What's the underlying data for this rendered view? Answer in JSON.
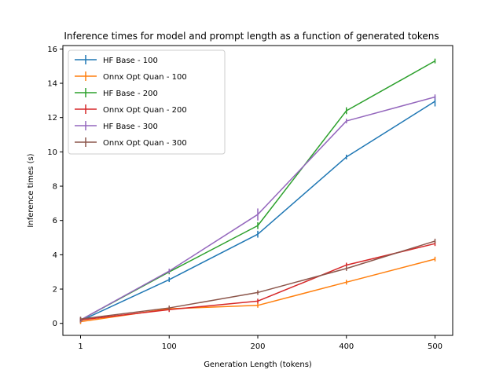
{
  "chart_data": {
    "type": "line",
    "title": "Inference times for model and prompt length as a function of generated tokens",
    "xlabel": "Generation Length (tokens)",
    "ylabel": "Inference times (s)",
    "categories": [
      "1",
      "100",
      "200",
      "400",
      "500"
    ],
    "ylim": [
      -0.7,
      16.2
    ],
    "yticks": [
      0,
      2,
      4,
      6,
      8,
      10,
      12,
      14,
      16
    ],
    "grid": false,
    "legend_position": "upper-left",
    "series": [
      {
        "name": "HF Base - 100",
        "color": "#1f77b4",
        "values": [
          0.15,
          2.55,
          5.2,
          9.7,
          12.95
        ],
        "errors": [
          0.05,
          0.05,
          0.2,
          0.05,
          0.3
        ]
      },
      {
        "name": "Onnx Opt Quan - 100",
        "color": "#ff7f0e",
        "values": [
          0.1,
          0.85,
          1.05,
          2.4,
          3.75
        ],
        "errors": [
          0.03,
          0.03,
          0.05,
          0.05,
          0.05
        ]
      },
      {
        "name": "HF Base - 200",
        "color": "#2ca02c",
        "values": [
          0.2,
          3.0,
          5.7,
          12.4,
          15.3
        ],
        "errors": [
          0.05,
          0.05,
          0.2,
          0.2,
          0.05
        ]
      },
      {
        "name": "Onnx Opt Quan - 200",
        "color": "#d62728",
        "values": [
          0.2,
          0.8,
          1.3,
          3.4,
          4.65
        ],
        "errors": [
          0.03,
          0.03,
          0.05,
          0.05,
          0.1
        ]
      },
      {
        "name": "HF Base - 300",
        "color": "#9467bd",
        "values": [
          0.2,
          3.05,
          6.35,
          11.8,
          13.2
        ],
        "errors": [
          0.05,
          0.05,
          0.35,
          0.05,
          0.15
        ]
      },
      {
        "name": "Onnx Opt Quan - 300",
        "color": "#8c564b",
        "values": [
          0.25,
          0.9,
          1.8,
          3.2,
          4.8
        ],
        "errors": [
          0.03,
          0.03,
          0.05,
          0.05,
          0.1
        ]
      }
    ]
  }
}
